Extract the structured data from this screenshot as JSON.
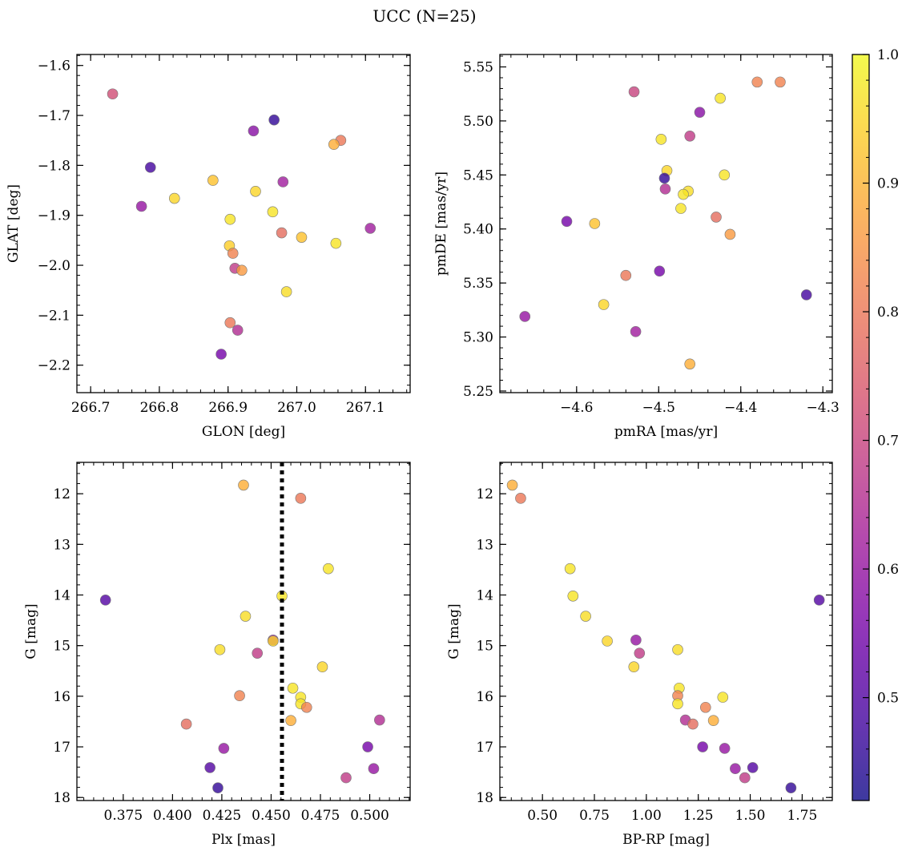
{
  "figure": {
    "title": "UCC (N=25)"
  },
  "chart_data": [
    {
      "type": "scatter",
      "xlabel": "GLON [deg]",
      "ylabel": "GLAT [deg]",
      "xlim": [
        266.68,
        267.165
      ],
      "ylim": [
        -2.255,
        -1.578
      ],
      "y_inverted": false,
      "xticks": [
        266.7,
        266.8,
        266.9,
        267.0,
        267.1
      ],
      "xtick_labels": [
        "266.7",
        "266.8",
        "266.9",
        "267.0",
        "267.1"
      ],
      "yticks": [
        -1.6,
        -1.7,
        -1.8,
        -1.9,
        -2.0,
        -2.1,
        -2.2
      ],
      "ytick_labels": [
        "−1.6",
        "−1.7",
        "−1.8",
        "−1.9",
        "−2.0",
        "−2.1",
        "−2.2"
      ],
      "points": [
        {
          "x": 266.732,
          "y": -1.657,
          "c": 0.72
        },
        {
          "x": 266.967,
          "y": -1.709,
          "c": 0.46
        },
        {
          "x": 266.937,
          "y": -1.731,
          "c": 0.58
        },
        {
          "x": 267.064,
          "y": -1.75,
          "c": 0.8
        },
        {
          "x": 267.054,
          "y": -1.758,
          "c": 0.89
        },
        {
          "x": 266.787,
          "y": -1.804,
          "c": 0.48
        },
        {
          "x": 266.878,
          "y": -1.83,
          "c": 0.92
        },
        {
          "x": 266.98,
          "y": -1.833,
          "c": 0.62
        },
        {
          "x": 266.94,
          "y": -1.852,
          "c": 0.95
        },
        {
          "x": 266.822,
          "y": -1.866,
          "c": 0.95
        },
        {
          "x": 266.774,
          "y": -1.882,
          "c": 0.6
        },
        {
          "x": 266.965,
          "y": -1.893,
          "c": 0.97
        },
        {
          "x": 266.903,
          "y": -1.908,
          "c": 0.97
        },
        {
          "x": 267.107,
          "y": -1.926,
          "c": 0.62
        },
        {
          "x": 266.978,
          "y": -1.935,
          "c": 0.78
        },
        {
          "x": 267.007,
          "y": -1.944,
          "c": 0.92
        },
        {
          "x": 267.057,
          "y": -1.956,
          "c": 0.97
        },
        {
          "x": 266.902,
          "y": -1.961,
          "c": 0.94
        },
        {
          "x": 266.907,
          "y": -1.976,
          "c": 0.82
        },
        {
          "x": 266.91,
          "y": -2.006,
          "c": 0.68
        },
        {
          "x": 266.92,
          "y": -2.01,
          "c": 0.86
        },
        {
          "x": 266.985,
          "y": -2.053,
          "c": 0.96
        },
        {
          "x": 266.903,
          "y": -2.115,
          "c": 0.8
        },
        {
          "x": 266.914,
          "y": -2.13,
          "c": 0.65
        },
        {
          "x": 266.89,
          "y": -2.178,
          "c": 0.55
        }
      ]
    },
    {
      "type": "scatter",
      "xlabel": "pmRA [mas/yr]",
      "ylabel": "pmDE [mas/yr]",
      "xlim": [
        -4.6935,
        -4.2885
      ],
      "ylim": [
        5.2485,
        5.5615
      ],
      "y_inverted": false,
      "xticks": [
        -4.6,
        -4.5,
        -4.4,
        -4.3
      ],
      "xtick_labels": [
        "−4.6",
        "−4.5",
        "−4.4",
        "−4.3"
      ],
      "yticks": [
        5.25,
        5.3,
        5.35,
        5.4,
        5.45,
        5.5,
        5.55
      ],
      "ytick_labels": [
        "5.25",
        "5.30",
        "5.35",
        "5.40",
        "5.45",
        "5.50",
        "5.55"
      ],
      "points": [
        {
          "x": -4.38,
          "y": 5.536,
          "c": 0.82
        },
        {
          "x": -4.352,
          "y": 5.536,
          "c": 0.82
        },
        {
          "x": -4.53,
          "y": 5.527,
          "c": 0.7
        },
        {
          "x": -4.425,
          "y": 5.521,
          "c": 0.97
        },
        {
          "x": -4.45,
          "y": 5.508,
          "c": 0.58
        },
        {
          "x": -4.462,
          "y": 5.486,
          "c": 0.68
        },
        {
          "x": -4.497,
          "y": 5.483,
          "c": 0.97
        },
        {
          "x": -4.49,
          "y": 5.454,
          "c": 0.95
        },
        {
          "x": -4.42,
          "y": 5.45,
          "c": 0.97
        },
        {
          "x": -4.493,
          "y": 5.447,
          "c": 0.46
        },
        {
          "x": -4.492,
          "y": 5.437,
          "c": 0.65
        },
        {
          "x": -4.464,
          "y": 5.435,
          "c": 0.96
        },
        {
          "x": -4.47,
          "y": 5.432,
          "c": 0.97
        },
        {
          "x": -4.473,
          "y": 5.419,
          "c": 0.97
        },
        {
          "x": -4.43,
          "y": 5.411,
          "c": 0.78
        },
        {
          "x": -4.612,
          "y": 5.407,
          "c": 0.55
        },
        {
          "x": -4.578,
          "y": 5.405,
          "c": 0.92
        },
        {
          "x": -4.413,
          "y": 5.395,
          "c": 0.86
        },
        {
          "x": -4.499,
          "y": 5.361,
          "c": 0.55
        },
        {
          "x": -4.54,
          "y": 5.357,
          "c": 0.8
        },
        {
          "x": -4.32,
          "y": 5.339,
          "c": 0.48
        },
        {
          "x": -4.567,
          "y": 5.33,
          "c": 0.95
        },
        {
          "x": -4.663,
          "y": 5.319,
          "c": 0.6
        },
        {
          "x": -4.528,
          "y": 5.305,
          "c": 0.62
        },
        {
          "x": -4.462,
          "y": 5.275,
          "c": 0.89
        }
      ]
    },
    {
      "type": "scatter",
      "xlabel": "Plx [mas]",
      "ylabel": "G [mag]",
      "xlim": [
        0.3515,
        0.5205
      ],
      "ylim": [
        18.06,
        11.38
      ],
      "y_inverted": true,
      "xticks": [
        0.375,
        0.4,
        0.425,
        0.45,
        0.475,
        0.5
      ],
      "xtick_labels": [
        "0.375",
        "0.400",
        "0.425",
        "0.450",
        "0.475",
        "0.500"
      ],
      "yticks": [
        12,
        13,
        14,
        15,
        16,
        17,
        18
      ],
      "ytick_labels": [
        "12",
        "13",
        "14",
        "15",
        "16",
        "17",
        "18"
      ],
      "vline": 0.4555,
      "points": [
        {
          "x": 0.436,
          "y": 11.83,
          "c": 0.89
        },
        {
          "x": 0.465,
          "y": 12.09,
          "c": 0.8
        },
        {
          "x": 0.479,
          "y": 13.48,
          "c": 0.97
        },
        {
          "x": 0.4555,
          "y": 14.02,
          "c": 0.97
        },
        {
          "x": 0.366,
          "y": 14.1,
          "c": 0.5
        },
        {
          "x": 0.437,
          "y": 14.42,
          "c": 0.96
        },
        {
          "x": 0.451,
          "y": 14.89,
          "c": 0.6
        },
        {
          "x": 0.451,
          "y": 14.91,
          "c": 0.95
        },
        {
          "x": 0.424,
          "y": 15.08,
          "c": 0.96
        },
        {
          "x": 0.443,
          "y": 15.15,
          "c": 0.68
        },
        {
          "x": 0.476,
          "y": 15.42,
          "c": 0.95
        },
        {
          "x": 0.461,
          "y": 15.84,
          "c": 0.97
        },
        {
          "x": 0.434,
          "y": 15.99,
          "c": 0.82
        },
        {
          "x": 0.465,
          "y": 16.02,
          "c": 0.97
        },
        {
          "x": 0.465,
          "y": 16.15,
          "c": 0.97
        },
        {
          "x": 0.468,
          "y": 16.22,
          "c": 0.82
        },
        {
          "x": 0.46,
          "y": 16.48,
          "c": 0.89
        },
        {
          "x": 0.505,
          "y": 16.47,
          "c": 0.65
        },
        {
          "x": 0.407,
          "y": 16.55,
          "c": 0.78
        },
        {
          "x": 0.499,
          "y": 17.0,
          "c": 0.55
        },
        {
          "x": 0.426,
          "y": 17.03,
          "c": 0.6
        },
        {
          "x": 0.419,
          "y": 17.41,
          "c": 0.5
        },
        {
          "x": 0.502,
          "y": 17.43,
          "c": 0.6
        },
        {
          "x": 0.488,
          "y": 17.61,
          "c": 0.68
        },
        {
          "x": 0.423,
          "y": 17.81,
          "c": 0.46
        }
      ]
    },
    {
      "type": "scatter",
      "xlabel": "BP-RP [mag]",
      "ylabel": "G [mag]",
      "xlim": [
        0.295,
        1.895
      ],
      "ylim": [
        18.06,
        11.38
      ],
      "y_inverted": true,
      "xticks": [
        0.5,
        0.75,
        1.0,
        1.25,
        1.5,
        1.75
      ],
      "xtick_labels": [
        "0.50",
        "0.75",
        "1.00",
        "1.25",
        "1.50",
        "1.75"
      ],
      "yticks": [
        12,
        13,
        14,
        15,
        16,
        17,
        18
      ],
      "ytick_labels": [
        "12",
        "13",
        "14",
        "15",
        "16",
        "17",
        "18"
      ],
      "points": [
        {
          "x": 0.355,
          "y": 11.83,
          "c": 0.89
        },
        {
          "x": 0.395,
          "y": 12.09,
          "c": 0.8
        },
        {
          "x": 0.633,
          "y": 13.48,
          "c": 0.97
        },
        {
          "x": 0.647,
          "y": 14.02,
          "c": 0.97
        },
        {
          "x": 1.832,
          "y": 14.1,
          "c": 0.5
        },
        {
          "x": 0.708,
          "y": 14.42,
          "c": 0.96
        },
        {
          "x": 0.95,
          "y": 14.89,
          "c": 0.6
        },
        {
          "x": 0.812,
          "y": 14.91,
          "c": 0.95
        },
        {
          "x": 1.151,
          "y": 15.08,
          "c": 0.96
        },
        {
          "x": 0.967,
          "y": 15.15,
          "c": 0.68
        },
        {
          "x": 0.94,
          "y": 15.42,
          "c": 0.95
        },
        {
          "x": 1.158,
          "y": 15.84,
          "c": 0.97
        },
        {
          "x": 1.151,
          "y": 15.99,
          "c": 0.82
        },
        {
          "x": 1.368,
          "y": 16.02,
          "c": 0.97
        },
        {
          "x": 1.151,
          "y": 16.15,
          "c": 0.97
        },
        {
          "x": 1.285,
          "y": 16.22,
          "c": 0.82
        },
        {
          "x": 1.323,
          "y": 16.48,
          "c": 0.89
        },
        {
          "x": 1.188,
          "y": 16.47,
          "c": 0.65
        },
        {
          "x": 1.224,
          "y": 16.55,
          "c": 0.78
        },
        {
          "x": 1.271,
          "y": 17.0,
          "c": 0.55
        },
        {
          "x": 1.377,
          "y": 17.03,
          "c": 0.6
        },
        {
          "x": 1.512,
          "y": 17.41,
          "c": 0.5
        },
        {
          "x": 1.428,
          "y": 17.43,
          "c": 0.6
        },
        {
          "x": 1.474,
          "y": 17.61,
          "c": 0.68
        },
        {
          "x": 1.696,
          "y": 17.81,
          "c": 0.46
        }
      ]
    }
  ],
  "colorbar": {
    "colormap": "plasma",
    "range": [
      0.42,
      1.0
    ],
    "ticks": [
      0.5,
      0.6,
      0.7,
      0.8,
      0.9,
      1.0
    ],
    "tick_labels": [
      "0.5",
      "0.6",
      "0.7",
      "0.8",
      "0.9",
      "1.0"
    ],
    "colors": [
      "#0d0887",
      "#46039f",
      "#7201a8",
      "#9c179e",
      "#bd3786",
      "#d8576b",
      "#ed7953",
      "#fb9f3a",
      "#fdca26",
      "#f0f921"
    ]
  },
  "style": {
    "marker_alpha": 0.8,
    "marker_edge": "#777777",
    "vline_color": "#000000"
  }
}
